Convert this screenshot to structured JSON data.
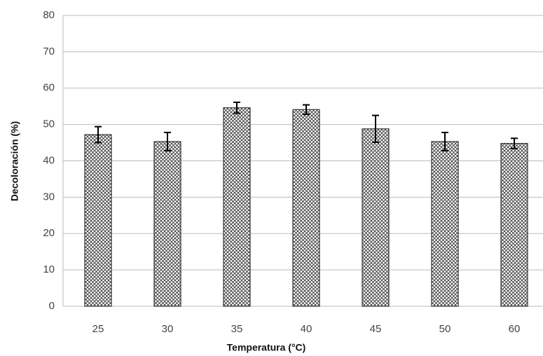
{
  "chart_data": {
    "type": "bar",
    "categories": [
      "25",
      "30",
      "35",
      "40",
      "45",
      "50",
      "60"
    ],
    "values": [
      47.2,
      45.3,
      54.6,
      54.1,
      48.8,
      45.3,
      44.8
    ],
    "errors": [
      2.2,
      2.5,
      1.5,
      1.3,
      3.7,
      2.5,
      1.4
    ],
    "color": "#333333",
    "x_label": "Temperatura (°C)",
    "y_label": "Decoloración (%)",
    "ylim": [
      0,
      80
    ],
    "yticks": [
      0,
      10,
      20,
      30,
      40,
      50,
      60,
      70,
      80
    ],
    "grid": true
  }
}
